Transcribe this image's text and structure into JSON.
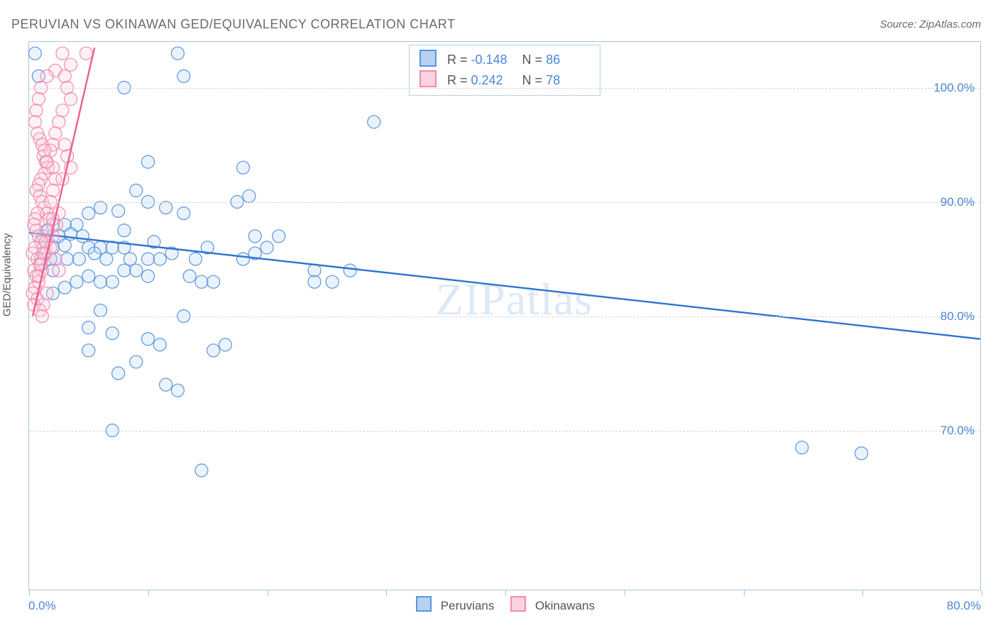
{
  "title": "PERUVIAN VS OKINAWAN GED/EQUIVALENCY CORRELATION CHART",
  "source_label": "Source: ZipAtlas.com",
  "y_axis_title": "GED/Equivalency",
  "watermark": "ZIPatlas",
  "chart": {
    "type": "scatter",
    "xlim": [
      0,
      80
    ],
    "ylim": [
      56,
      104
    ],
    "x_ticks": [
      0,
      10,
      20,
      30,
      40,
      50,
      60,
      70,
      80
    ],
    "y_gridlines": [
      70,
      80,
      90,
      100
    ],
    "y_tick_labels": [
      "70.0%",
      "80.0%",
      "90.0%",
      "100.0%"
    ],
    "x_label_start": "0.0%",
    "x_label_end": "80.0%",
    "background_color": "#ffffff",
    "grid_color": "#d6d6d6",
    "axis_color": "#a9c4e0",
    "label_color": "#4a86d8",
    "label_fontsize": 17,
    "title_color": "#6b6b6b",
    "title_fontsize": 18,
    "marker_radius": 9,
    "marker_stroke_width": 1.2,
    "marker_fill_opacity": 0.28,
    "trend_line_width": 2.4
  },
  "series": [
    {
      "name": "Peruvians",
      "marker_color": "#5a95df",
      "fill_color": "#b5d3f1",
      "line_color": "#2f72cf",
      "stats": {
        "R": "-0.148",
        "N": "86"
      },
      "trend": {
        "x1": 0,
        "y1": 87.3,
        "x2": 80,
        "y2": 78.0
      },
      "points": [
        [
          0.5,
          103
        ],
        [
          12.5,
          103
        ],
        [
          0.8,
          101
        ],
        [
          13,
          101
        ],
        [
          8,
          100
        ],
        [
          29,
          97
        ],
        [
          10,
          93.5
        ],
        [
          18,
          93
        ],
        [
          9,
          91
        ],
        [
          10,
          90
        ],
        [
          11.5,
          89.5
        ],
        [
          13,
          89
        ],
        [
          6,
          89.5
        ],
        [
          5,
          89
        ],
        [
          7.5,
          89.2
        ],
        [
          4,
          88
        ],
        [
          3,
          88
        ],
        [
          2,
          88
        ],
        [
          1.2,
          87
        ],
        [
          1.5,
          87.5
        ],
        [
          2.5,
          87
        ],
        [
          3.5,
          87.2
        ],
        [
          4.5,
          87
        ],
        [
          1,
          86.5
        ],
        [
          2,
          86
        ],
        [
          3,
          86.2
        ],
        [
          5,
          86
        ],
        [
          6,
          86
        ],
        [
          7,
          86
        ],
        [
          8,
          86
        ],
        [
          5.5,
          85.5
        ],
        [
          4.2,
          85
        ],
        [
          3.2,
          85
        ],
        [
          2.2,
          85
        ],
        [
          1.8,
          85
        ],
        [
          1,
          85
        ],
        [
          6.5,
          85
        ],
        [
          8.5,
          85
        ],
        [
          10,
          85
        ],
        [
          11,
          85
        ],
        [
          12,
          85.5
        ],
        [
          14,
          85
        ],
        [
          15,
          86
        ],
        [
          18,
          85
        ],
        [
          19,
          87
        ],
        [
          20,
          86
        ],
        [
          24,
          84
        ],
        [
          27,
          84
        ],
        [
          17.5,
          90
        ],
        [
          18.5,
          90.5
        ],
        [
          19,
          85.5
        ],
        [
          13.5,
          83.5
        ],
        [
          14.5,
          83
        ],
        [
          15.5,
          83
        ],
        [
          8,
          84
        ],
        [
          9,
          84
        ],
        [
          10,
          83.5
        ],
        [
          7,
          83
        ],
        [
          6,
          83
        ],
        [
          5,
          83.5
        ],
        [
          4,
          83
        ],
        [
          3,
          82.5
        ],
        [
          2,
          84
        ],
        [
          2,
          82
        ],
        [
          6,
          80.5
        ],
        [
          13,
          80
        ],
        [
          5,
          79
        ],
        [
          7,
          78.5
        ],
        [
          10,
          78
        ],
        [
          11,
          77.5
        ],
        [
          5,
          77
        ],
        [
          9,
          76
        ],
        [
          15.5,
          77
        ],
        [
          16.5,
          77.5
        ],
        [
          7.5,
          75
        ],
        [
          11.5,
          74
        ],
        [
          12.5,
          73.5
        ],
        [
          7,
          70
        ],
        [
          14.5,
          66.5
        ],
        [
          70,
          68
        ],
        [
          65,
          68.5
        ],
        [
          24,
          83
        ],
        [
          25.5,
          83
        ],
        [
          21,
          87
        ],
        [
          8,
          87.5
        ],
        [
          10.5,
          86.5
        ]
      ]
    },
    {
      "name": "Okinawans",
      "marker_color": "#f48aae",
      "fill_color": "#fad2e0",
      "line_color": "#ec5f8e",
      "stats": {
        "R": "0.242",
        "N": "78"
      },
      "trend": {
        "x1": 0.3,
        "y1": 80,
        "x2": 5.5,
        "y2": 103.5
      },
      "points": [
        [
          2.8,
          103
        ],
        [
          4.8,
          103
        ],
        [
          3.5,
          102
        ],
        [
          2.2,
          101.5
        ],
        [
          1.5,
          101
        ],
        [
          1,
          100
        ],
        [
          0.8,
          99
        ],
        [
          0.6,
          98
        ],
        [
          0.5,
          97
        ],
        [
          0.7,
          96
        ],
        [
          0.9,
          95.5
        ],
        [
          1.1,
          95
        ],
        [
          1.2,
          94
        ],
        [
          1.4,
          93.5
        ],
        [
          1.6,
          93
        ],
        [
          1.3,
          92.5
        ],
        [
          1,
          92
        ],
        [
          0.8,
          91.5
        ],
        [
          0.6,
          91
        ],
        [
          0.9,
          90.5
        ],
        [
          1.1,
          90
        ],
        [
          1.3,
          89.5
        ],
        [
          1.5,
          89
        ],
        [
          1.7,
          88.5
        ],
        [
          0.7,
          89
        ],
        [
          0.5,
          88.5
        ],
        [
          0.4,
          88
        ],
        [
          0.6,
          87.5
        ],
        [
          0.8,
          87
        ],
        [
          1,
          86.5
        ],
        [
          1.2,
          86
        ],
        [
          1.4,
          85.5
        ],
        [
          0.5,
          86
        ],
        [
          0.3,
          85.5
        ],
        [
          0.7,
          85
        ],
        [
          0.9,
          84.5
        ],
        [
          1.1,
          84
        ],
        [
          0.4,
          84
        ],
        [
          0.6,
          83.5
        ],
        [
          0.8,
          83
        ],
        [
          0.5,
          82.5
        ],
        [
          0.3,
          82
        ],
        [
          0.7,
          81.5
        ],
        [
          0.4,
          81
        ],
        [
          2,
          93
        ],
        [
          2.2,
          92
        ],
        [
          2,
          91
        ],
        [
          1.8,
          90
        ],
        [
          2.5,
          89
        ],
        [
          2.3,
          88
        ],
        [
          2,
          87
        ],
        [
          1.8,
          86
        ],
        [
          2.2,
          85
        ],
        [
          2.5,
          84
        ],
        [
          3,
          101
        ],
        [
          3.2,
          100
        ],
        [
          3.5,
          99
        ],
        [
          2.8,
          98
        ],
        [
          2.5,
          97
        ],
        [
          2.2,
          96
        ],
        [
          2,
          95
        ],
        [
          1.8,
          94.5
        ],
        [
          3,
          95
        ],
        [
          3.2,
          94
        ],
        [
          3.5,
          93
        ],
        [
          2.8,
          92
        ],
        [
          2,
          88.5
        ],
        [
          1.6,
          87.5
        ],
        [
          1.4,
          86.5
        ],
        [
          1.2,
          85.5
        ],
        [
          1,
          84.5
        ],
        [
          0.8,
          83.5
        ],
        [
          1.5,
          82
        ],
        [
          1.2,
          81
        ],
        [
          0.9,
          80.5
        ],
        [
          1.1,
          80
        ],
        [
          1.3,
          94.5
        ],
        [
          1.5,
          93.5
        ]
      ]
    }
  ],
  "top_legend_labels": {
    "R": "R",
    "eq": "=",
    "N": "N"
  },
  "bottom_legend": {
    "a": "Peruvians",
    "b": "Okinawans"
  }
}
